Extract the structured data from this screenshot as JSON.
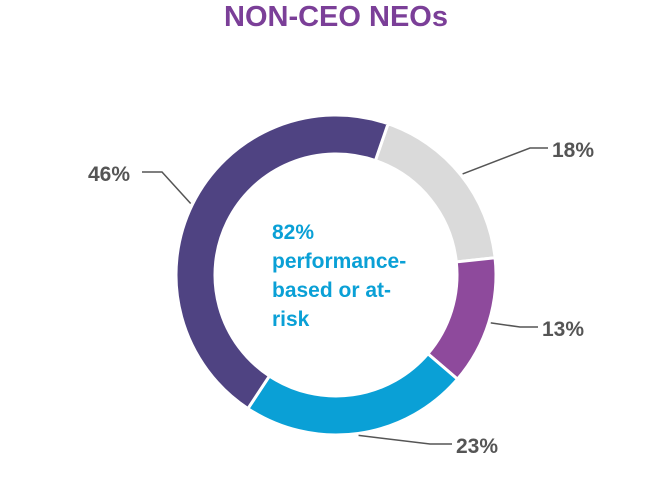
{
  "chart_data": {
    "type": "pie",
    "variant": "donut",
    "title": "NON-CEO NEOs",
    "center_text": [
      "82%",
      "performance-",
      "based or at-",
      "risk"
    ],
    "slices": [
      {
        "value": 18,
        "label": "18%",
        "color": "#dadada"
      },
      {
        "value": 13,
        "label": "13%",
        "color": "#8e4a9c"
      },
      {
        "value": 23,
        "label": "23%",
        "color": "#0aa0d6"
      },
      {
        "value": 46,
        "label": "46%",
        "color": "#4f4382"
      }
    ]
  }
}
